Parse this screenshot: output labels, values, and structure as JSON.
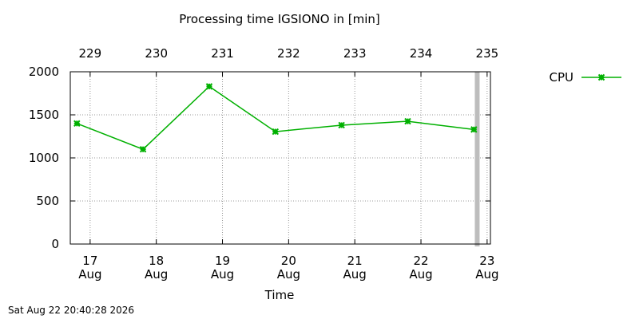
{
  "chart_data": {
    "type": "line",
    "title": "Processing time IGSIONO in [min]",
    "xlabel": "Time",
    "ylabel": "",
    "ylim": [
      0,
      2000
    ],
    "yticks": [
      0,
      500,
      1000,
      1500,
      2000
    ],
    "x_range_days": [
      16.7,
      23.05
    ],
    "x_ticks_bottom": [
      {
        "day": 17,
        "label_top": "17",
        "label_bottom": "Aug"
      },
      {
        "day": 18,
        "label_top": "18",
        "label_bottom": "Aug"
      },
      {
        "day": 19,
        "label_top": "19",
        "label_bottom": "Aug"
      },
      {
        "day": 20,
        "label_top": "20",
        "label_bottom": "Aug"
      },
      {
        "day": 21,
        "label_top": "21",
        "label_bottom": "Aug"
      },
      {
        "day": 22,
        "label_top": "22",
        "label_bottom": "Aug"
      },
      {
        "day": 23,
        "label_top": "23",
        "label_bottom": "Aug"
      }
    ],
    "x_ticks_top": [
      {
        "day": 17,
        "label": "229"
      },
      {
        "day": 18,
        "label": "230"
      },
      {
        "day": 19,
        "label": "231"
      },
      {
        "day": 20,
        "label": "232"
      },
      {
        "day": 21,
        "label": "233"
      },
      {
        "day": 22,
        "label": "234"
      },
      {
        "day": 23,
        "label": "235"
      }
    ],
    "grid": true,
    "legend_position": "top-right-outside",
    "current_time_marker_day": 22.85,
    "series": [
      {
        "name": "CPU",
        "color": "#00b000",
        "marker": "x-star",
        "x": [
          16.8,
          17.8,
          18.8,
          19.8,
          20.8,
          21.8,
          22.8
        ],
        "y": [
          1400,
          1100,
          1830,
          1305,
          1380,
          1425,
          1330
        ]
      }
    ]
  },
  "footer": {
    "timestamp": "Sat Aug 22 20:40:28 2026"
  }
}
